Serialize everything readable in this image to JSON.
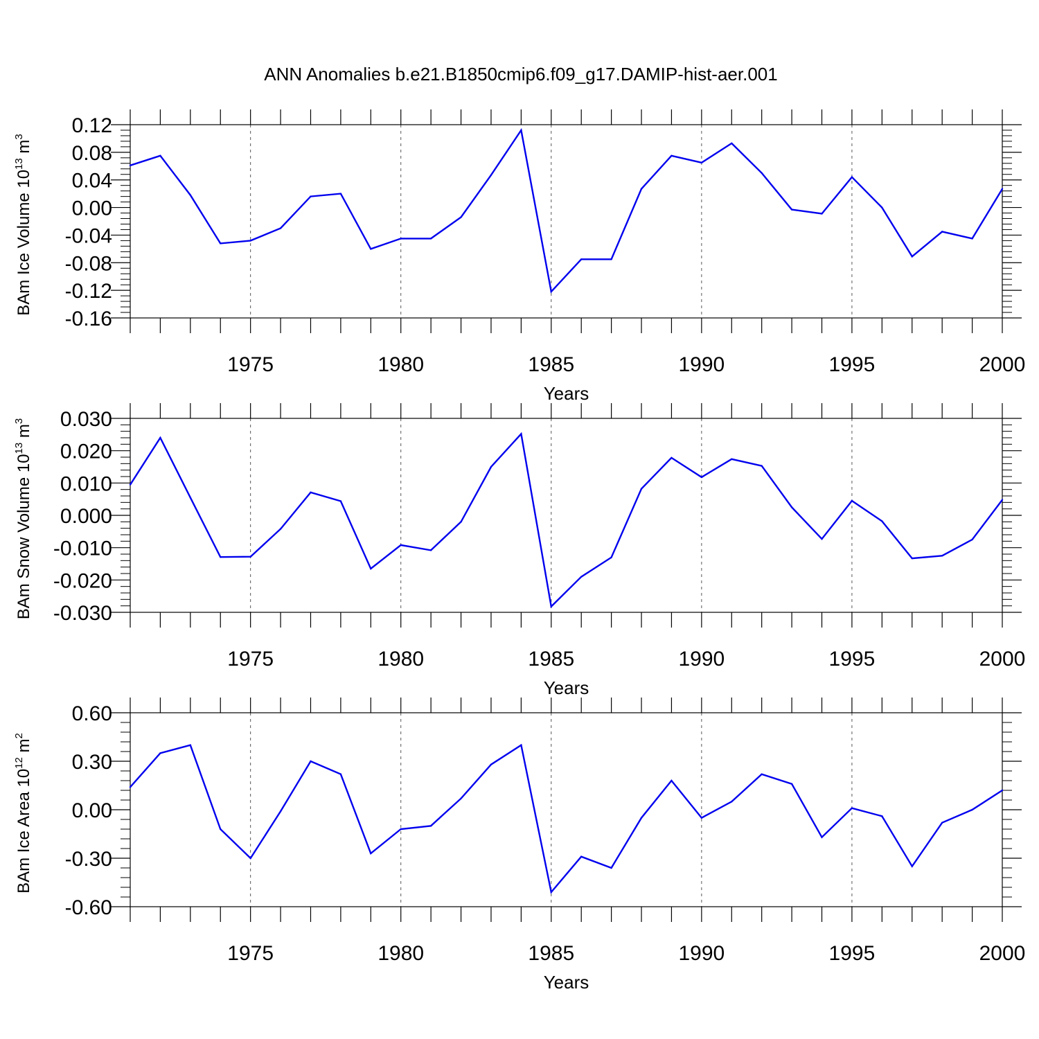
{
  "title": "ANN Anomalies b.e21.B1850cmip6.f09_g17.DAMIP-hist-aer.001",
  "colors": {
    "line": "#0000ee",
    "axis": "#000000",
    "grid": "#555555"
  },
  "chart_data": [
    {
      "type": "line",
      "ylabel": {
        "text": "BAm Ice Volume 10",
        "exponent": "13",
        "unit": " m",
        "unit_exponent": "3"
      },
      "xlabel": "Years",
      "xlim": [
        1971,
        2000
      ],
      "ylim": [
        -0.16,
        0.12
      ],
      "yticks": [
        -0.16,
        -0.12,
        -0.08,
        -0.04,
        0.0,
        0.04,
        0.08,
        0.12
      ],
      "ytick_labels": [
        "-0.16",
        "-0.12",
        "-0.08",
        "-0.04",
        "0.00",
        "0.04",
        "0.08",
        "0.12"
      ],
      "xticks": [
        1975,
        1980,
        1985,
        1990,
        1995,
        2000
      ],
      "xtick_labels": [
        "1975",
        "1980",
        "1985",
        "1990",
        "1995",
        "2000"
      ],
      "grid": "vertical dashed at labeled years",
      "x": [
        1971,
        1972,
        1973,
        1974,
        1975,
        1976,
        1977,
        1978,
        1979,
        1980,
        1981,
        1982,
        1983,
        1984,
        1985,
        1986,
        1987,
        1988,
        1989,
        1990,
        1991,
        1992,
        1993,
        1994,
        1995,
        1996,
        1997,
        1998,
        1999,
        2000
      ],
      "y": [
        0.061,
        0.075,
        0.018,
        -0.052,
        -0.048,
        -0.03,
        0.016,
        0.02,
        -0.06,
        -0.045,
        -0.045,
        -0.014,
        0.047,
        0.112,
        -0.122,
        -0.075,
        -0.075,
        0.027,
        0.075,
        0.065,
        0.093,
        0.05,
        -0.003,
        -0.009,
        0.044,
        0.0,
        -0.071,
        -0.035,
        -0.045,
        0.027
      ]
    },
    {
      "type": "line",
      "ylabel": {
        "text": "BAm Snow Volume 10",
        "exponent": "13",
        "unit": " m",
        "unit_exponent": "3"
      },
      "xlabel": "Years",
      "xlim": [
        1971,
        2000
      ],
      "ylim": [
        -0.03,
        0.03
      ],
      "yticks": [
        -0.03,
        -0.02,
        -0.01,
        0.0,
        0.01,
        0.02,
        0.03
      ],
      "ytick_labels": [
        "-0.030",
        "-0.020",
        "-0.010",
        "0.000",
        "0.010",
        "0.020",
        "0.030"
      ],
      "xticks": [
        1975,
        1980,
        1985,
        1990,
        1995,
        2000
      ],
      "xtick_labels": [
        "1975",
        "1980",
        "1985",
        "1990",
        "1995",
        "2000"
      ],
      "grid": "vertical dashed at labeled years",
      "x": [
        1971,
        1972,
        1973,
        1974,
        1975,
        1976,
        1977,
        1978,
        1979,
        1980,
        1981,
        1982,
        1983,
        1984,
        1985,
        1986,
        1987,
        1988,
        1989,
        1990,
        1991,
        1992,
        1993,
        1994,
        1995,
        1996,
        1997,
        1998,
        1999,
        2000
      ],
      "y": [
        0.0095,
        0.024,
        0.0055,
        -0.0129,
        -0.0128,
        -0.0042,
        0.0071,
        0.0044,
        -0.0165,
        -0.0092,
        -0.0108,
        -0.002,
        0.015,
        0.0252,
        -0.0282,
        -0.019,
        -0.013,
        0.0082,
        0.0178,
        0.0118,
        0.0174,
        0.0153,
        0.0025,
        -0.0073,
        0.0045,
        -0.0018,
        -0.0133,
        -0.0125,
        -0.0075,
        0.0048
      ]
    },
    {
      "type": "line",
      "ylabel": {
        "text": "BAm Ice Area 10",
        "exponent": "12",
        "unit": " m",
        "unit_exponent": "2"
      },
      "xlabel": "Years",
      "xlim": [
        1971,
        2000
      ],
      "ylim": [
        -0.6,
        0.6
      ],
      "yticks": [
        -0.6,
        -0.3,
        0.0,
        0.3,
        0.6
      ],
      "ytick_labels": [
        "-0.60",
        "-0.30",
        "0.00",
        "0.30",
        "0.60"
      ],
      "xticks": [
        1975,
        1980,
        1985,
        1990,
        1995,
        2000
      ],
      "xtick_labels": [
        "1975",
        "1980",
        "1985",
        "1990",
        "1995",
        "2000"
      ],
      "grid": "vertical dashed at labeled years",
      "x": [
        1971,
        1972,
        1973,
        1974,
        1975,
        1976,
        1977,
        1978,
        1979,
        1980,
        1981,
        1982,
        1983,
        1984,
        1985,
        1986,
        1987,
        1988,
        1989,
        1990,
        1991,
        1992,
        1993,
        1994,
        1995,
        1996,
        1997,
        1998,
        1999,
        2000
      ],
      "y": [
        0.14,
        0.35,
        0.4,
        -0.12,
        -0.3,
        -0.01,
        0.3,
        0.22,
        -0.27,
        -0.12,
        -0.1,
        0.07,
        0.28,
        0.4,
        -0.51,
        -0.29,
        -0.36,
        -0.05,
        0.18,
        -0.05,
        0.05,
        0.22,
        0.16,
        -0.17,
        0.01,
        -0.04,
        -0.35,
        -0.08,
        0.0,
        0.12
      ]
    }
  ]
}
